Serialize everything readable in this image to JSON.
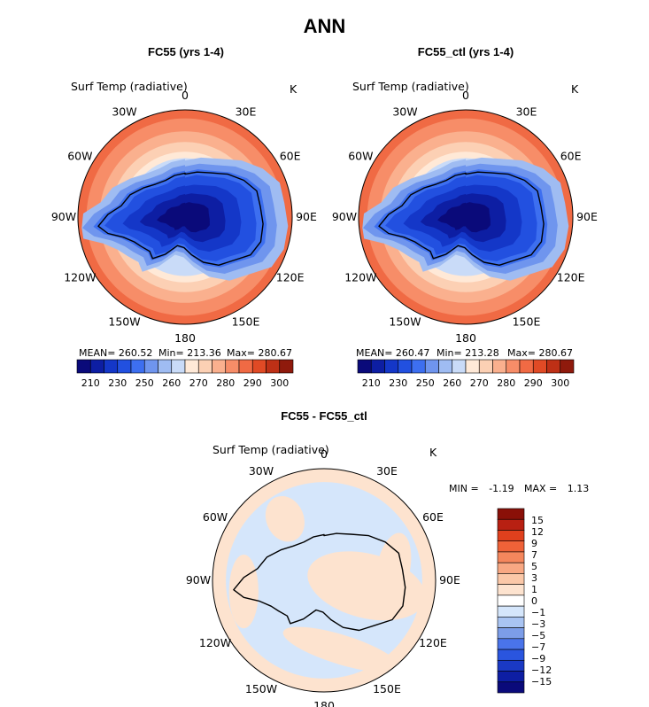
{
  "figure": {
    "title": "ANN"
  },
  "colors": {
    "abs": [
      "#0a0a7a",
      "#0d1ea3",
      "#1437c8",
      "#2250e0",
      "#3d6ff0",
      "#6f95ee",
      "#9fbcf2",
      "#c9dbf8",
      "#ffe9d7",
      "#fcd0b4",
      "#fab08e",
      "#f78d68",
      "#f06a44",
      "#e04a25",
      "#be3016",
      "#8f1a0c"
    ],
    "diff": [
      "#0a0a7a",
      "#0d1ea3",
      "#1a39c4",
      "#2a55df",
      "#4a74ea",
      "#7c9de8",
      "#a9c4f2",
      "#d5e6fb",
      "#ffffff",
      "#fde3cf",
      "#fbc8a8",
      "#f8a883",
      "#f5875d",
      "#ef6238",
      "#e0401d",
      "#b82012",
      "#8a1008"
    ]
  },
  "panels": [
    {
      "title": "FC55 (yrs 1-4)",
      "variable": "Surf Temp (radiative)",
      "units": "K",
      "stats": {
        "mean_label": "MEAN=",
        "mean": "260.52",
        "min_label": "Min=",
        "min": "213.36",
        "max_label": "Max=",
        "max": "280.67"
      }
    },
    {
      "title": "FC55_ctl (yrs 1-4)",
      "variable": "Surf Temp (radiative)",
      "units": "K",
      "stats": {
        "mean_label": "MEAN=",
        "mean": "260.47",
        "min_label": "Min=",
        "min": "213.28",
        "max_label": "Max=",
        "max": "280.67"
      }
    },
    {
      "title": "FC55 - FC55_ctl",
      "variable": "Surf Temp (radiative)",
      "units": "K",
      "stats": {
        "min_label": "MIN =",
        "min": "-1.19",
        "max_label": "MAX =",
        "max": "1.13"
      }
    }
  ],
  "chart_data": [
    {
      "type": "heatmap",
      "title": "FC55 (yrs 1-4)",
      "projection": "polar stereographic, Southern Hemisphere",
      "variable": "Surf Temp (radiative)",
      "units": "K",
      "longitude_labels": [
        "0",
        "30E",
        "60E",
        "90E",
        "120E",
        "150E",
        "180",
        "150W",
        "120W",
        "90W",
        "60W",
        "30W"
      ],
      "colorbar_ticks": [
        "210",
        "230",
        "250",
        "260",
        "270",
        "280",
        "290",
        "300"
      ],
      "colorbar_orientation": "horizontal",
      "mean": 260.52,
      "min": 213.36,
      "max": 280.67
    },
    {
      "type": "heatmap",
      "title": "FC55_ctl (yrs 1-4)",
      "projection": "polar stereographic, Southern Hemisphere",
      "variable": "Surf Temp (radiative)",
      "units": "K",
      "longitude_labels": [
        "0",
        "30E",
        "60E",
        "90E",
        "120E",
        "150E",
        "180",
        "150W",
        "120W",
        "90W",
        "60W",
        "30W"
      ],
      "colorbar_ticks": [
        "210",
        "230",
        "250",
        "260",
        "270",
        "280",
        "290",
        "300"
      ],
      "colorbar_orientation": "horizontal",
      "mean": 260.47,
      "min": 213.28,
      "max": 280.67
    },
    {
      "type": "heatmap",
      "title": "FC55 - FC55_ctl",
      "projection": "polar stereographic, Southern Hemisphere",
      "variable": "Surf Temp (radiative)",
      "units": "K",
      "longitude_labels": [
        "0",
        "30E",
        "60E",
        "90E",
        "120E",
        "150E",
        "180",
        "150W",
        "120W",
        "90W",
        "60W",
        "30W"
      ],
      "colorbar_ticks": [
        "15",
        "12",
        "9",
        "7",
        "5",
        "3",
        "1",
        "0",
        "−1",
        "−3",
        "−5",
        "−7",
        "−9",
        "−12",
        "−15"
      ],
      "colorbar_orientation": "vertical",
      "min": -1.19,
      "max": 1.13
    }
  ]
}
